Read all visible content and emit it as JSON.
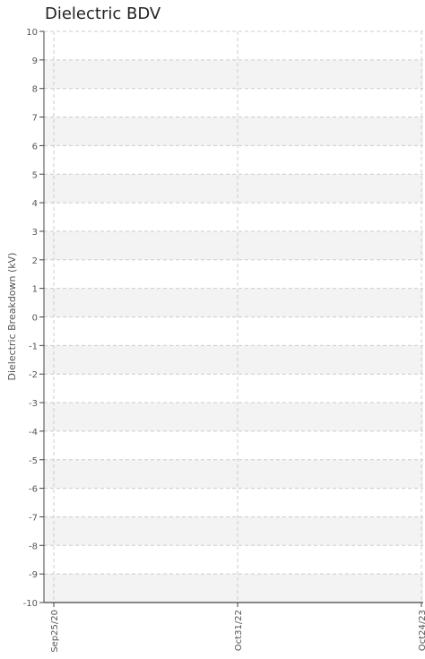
{
  "chart_data": {
    "type": "line",
    "title": "Dielectric BDV",
    "ylabel": "Dielectric Breakdown (kV)",
    "xlabel": "",
    "ylim": [
      -10,
      10
    ],
    "yticks": [
      -10,
      -9,
      -8,
      -7,
      -6,
      -5,
      -4,
      -3,
      -2,
      -1,
      0,
      1,
      2,
      3,
      4,
      5,
      6,
      7,
      8,
      9,
      10
    ],
    "xticks": [
      "Sep25/20",
      "Oct31/22",
      "Oct24/23"
    ],
    "series": [],
    "grid": true,
    "colors": {
      "band": "#f3f3f3",
      "grid": "#cccccc",
      "axis": "#444444",
      "text": "#555555"
    }
  }
}
